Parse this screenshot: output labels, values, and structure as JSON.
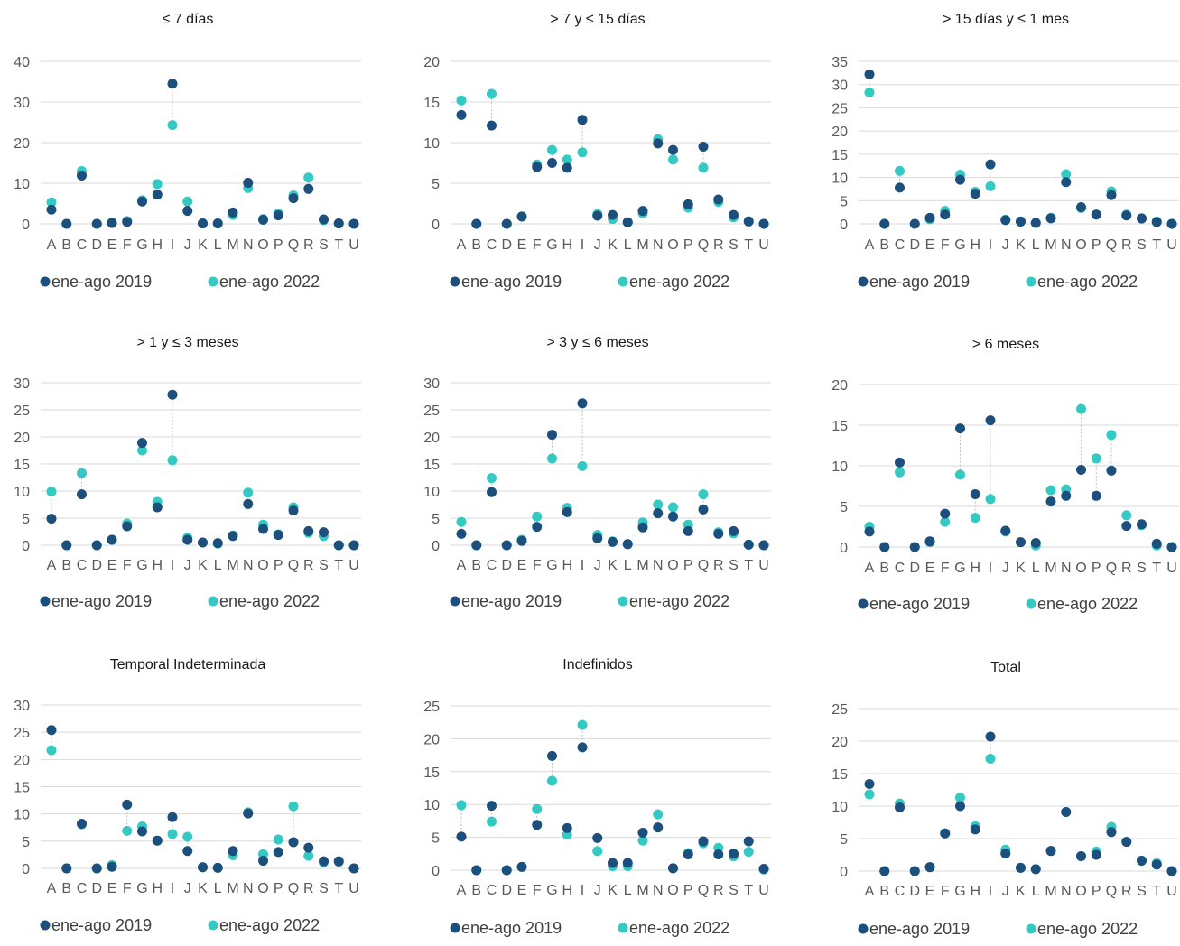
{
  "colors": {
    "s2019": "#1d4f7c",
    "s2022": "#35c9c4",
    "grid": "#d9d9d9",
    "connector": "#bfbfbf"
  },
  "legend": [
    "ene-ago 2019",
    "ene-ago 2022"
  ],
  "chart_data": [
    {
      "type": "scatter",
      "title": "≤ 7 días",
      "categories": [
        "A",
        "B",
        "C",
        "D",
        "E",
        "F",
        "G",
        "H",
        "I",
        "J",
        "K",
        "L",
        "M",
        "N",
        "O",
        "P",
        "Q",
        "R",
        "S",
        "T",
        "U"
      ],
      "ylim": [
        0,
        40
      ],
      "yticks": [
        0,
        10,
        20,
        30,
        40
      ],
      "series": [
        {
          "name": "ene-ago 2019",
          "values": [
            3.5,
            0,
            11.9,
            0,
            0.2,
            0.5,
            5.5,
            7.2,
            34.5,
            3.2,
            0.1,
            0.1,
            2.8,
            10.1,
            1.0,
            2.1,
            6.3,
            8.6,
            1.1,
            0.1,
            0
          ]
        },
        {
          "name": "ene-ago 2022",
          "values": [
            5.3,
            0,
            13.0,
            0,
            0.3,
            0.7,
            5.8,
            9.8,
            24.3,
            5.5,
            0.1,
            0.1,
            2.2,
            8.8,
            1.2,
            2.5,
            7.0,
            11.4,
            0.9,
            0.1,
            0
          ]
        }
      ]
    },
    {
      "type": "scatter",
      "title": "> 7 y ≤ 15 días",
      "categories": [
        "A",
        "B",
        "C",
        "D",
        "E",
        "F",
        "G",
        "H",
        "I",
        "J",
        "K",
        "L",
        "M",
        "N",
        "O",
        "P",
        "Q",
        "R",
        "S",
        "T",
        "U"
      ],
      "ylim": [
        0,
        20
      ],
      "yticks": [
        0,
        5,
        10,
        15,
        20
      ],
      "series": [
        {
          "name": "ene-ago 2019",
          "values": [
            13.4,
            0,
            12.1,
            0,
            0.9,
            7.0,
            7.5,
            6.9,
            12.8,
            1.0,
            1.1,
            0.2,
            1.6,
            9.9,
            9.1,
            2.4,
            9.5,
            3.0,
            1.1,
            0.3,
            0
          ]
        },
        {
          "name": "ene-ago 2022",
          "values": [
            15.2,
            0,
            16.0,
            0,
            0.9,
            7.3,
            9.1,
            7.9,
            8.8,
            1.2,
            0.6,
            0.2,
            1.3,
            10.4,
            7.9,
            2.0,
            6.9,
            2.7,
            0.8,
            0.3,
            0
          ]
        }
      ]
    },
    {
      "type": "scatter",
      "title": "> 15 días y ≤ 1 mes",
      "categories": [
        "A",
        "B",
        "C",
        "D",
        "E",
        "F",
        "G",
        "H",
        "I",
        "J",
        "K",
        "L",
        "M",
        "N",
        "O",
        "P",
        "Q",
        "R",
        "S",
        "T",
        "U"
      ],
      "ylim": [
        0,
        35
      ],
      "yticks": [
        0,
        5,
        10,
        15,
        20,
        25,
        30,
        35
      ],
      "series": [
        {
          "name": "ene-ago 2019",
          "values": [
            32.2,
            0,
            7.8,
            0,
            1.3,
            2.0,
            9.5,
            6.5,
            12.8,
            0.8,
            0.5,
            0.2,
            1.2,
            9.0,
            3.6,
            2.0,
            6.2,
            1.8,
            1.2,
            0.4,
            0
          ]
        },
        {
          "name": "ene-ago 2022",
          "values": [
            28.3,
            0,
            11.4,
            0,
            1.0,
            2.8,
            10.6,
            6.9,
            8.1,
            0.9,
            0.5,
            0.2,
            1.3,
            10.7,
            3.4,
            2.0,
            7.0,
            2.0,
            1.1,
            0.5,
            0
          ]
        }
      ]
    },
    {
      "type": "scatter",
      "title": "> 1 y ≤ 3 meses",
      "categories": [
        "A",
        "B",
        "C",
        "D",
        "E",
        "F",
        "G",
        "H",
        "I",
        "J",
        "K",
        "L",
        "M",
        "N",
        "O",
        "P",
        "Q",
        "R",
        "S",
        "T",
        "U"
      ],
      "ylim": [
        0,
        30
      ],
      "yticks": [
        0,
        5,
        10,
        15,
        20,
        25,
        30
      ],
      "series": [
        {
          "name": "ene-ago 2019",
          "values": [
            4.9,
            0,
            9.4,
            0,
            1.0,
            3.5,
            18.9,
            7.0,
            27.8,
            1.0,
            0.5,
            0.4,
            1.7,
            7.6,
            3.0,
            1.9,
            6.4,
            2.6,
            2.4,
            0,
            0
          ]
        },
        {
          "name": "ene-ago 2022",
          "values": [
            9.9,
            0,
            13.3,
            0,
            1.0,
            4.0,
            17.5,
            8.0,
            15.7,
            1.4,
            0.5,
            0.3,
            1.8,
            9.7,
            3.8,
            2.0,
            7.0,
            2.3,
            1.7,
            0,
            0
          ]
        }
      ]
    },
    {
      "type": "scatter",
      "title": "> 3 y ≤ 6 meses",
      "categories": [
        "A",
        "B",
        "C",
        "D",
        "E",
        "F",
        "G",
        "H",
        "I",
        "J",
        "K",
        "L",
        "M",
        "N",
        "O",
        "P",
        "Q",
        "R",
        "S",
        "T",
        "U"
      ],
      "ylim": [
        0,
        30
      ],
      "yticks": [
        0,
        5,
        10,
        15,
        20,
        25,
        30
      ],
      "series": [
        {
          "name": "ene-ago 2019",
          "values": [
            2.1,
            0,
            9.8,
            0,
            0.8,
            3.4,
            20.4,
            6.1,
            26.2,
            1.3,
            0.6,
            0.2,
            3.3,
            5.9,
            5.3,
            2.6,
            6.6,
            2.1,
            2.6,
            0.1,
            0
          ]
        },
        {
          "name": "ene-ago 2022",
          "values": [
            4.3,
            0,
            12.4,
            0,
            1.0,
            5.3,
            16.0,
            6.9,
            14.6,
            1.9,
            0.7,
            0.2,
            4.2,
            7.5,
            7.0,
            3.8,
            9.4,
            2.4,
            2.2,
            0.1,
            0
          ]
        }
      ]
    },
    {
      "type": "scatter",
      "title": "> 6 meses",
      "categories": [
        "A",
        "B",
        "C",
        "D",
        "E",
        "F",
        "G",
        "H",
        "I",
        "J",
        "K",
        "L",
        "M",
        "N",
        "O",
        "P",
        "Q",
        "R",
        "S",
        "T",
        "U"
      ],
      "ylim": [
        0,
        20
      ],
      "yticks": [
        0,
        5,
        10,
        15,
        20
      ],
      "series": [
        {
          "name": "ene-ago 2019",
          "values": [
            1.9,
            0,
            10.4,
            0,
            0.7,
            4.1,
            14.6,
            6.5,
            15.6,
            2.0,
            0.6,
            0.5,
            5.6,
            6.3,
            9.5,
            6.3,
            9.4,
            2.6,
            2.8,
            0.4,
            0
          ]
        },
        {
          "name": "ene-ago 2022",
          "values": [
            2.5,
            0,
            9.2,
            0,
            0.6,
            3.1,
            8.9,
            3.6,
            5.9,
            1.9,
            0.6,
            0.2,
            7.0,
            7.1,
            17.0,
            10.9,
            13.8,
            3.9,
            2.7,
            0.2,
            0
          ]
        }
      ]
    },
    {
      "type": "scatter",
      "title": "Temporal Indeterminada",
      "categories": [
        "A",
        "B",
        "C",
        "D",
        "E",
        "F",
        "G",
        "H",
        "I",
        "J",
        "K",
        "L",
        "M",
        "N",
        "O",
        "P",
        "Q",
        "R",
        "S",
        "T",
        "U"
      ],
      "ylim": [
        0,
        30
      ],
      "yticks": [
        0,
        5,
        10,
        15,
        20,
        25,
        30
      ],
      "series": [
        {
          "name": "ene-ago 2019",
          "values": [
            25.4,
            0,
            8.2,
            0,
            0.3,
            11.7,
            6.8,
            5.1,
            9.4,
            3.2,
            0.2,
            0.1,
            3.2,
            10.1,
            1.4,
            3.0,
            4.8,
            3.8,
            1.3,
            1.3,
            0
          ]
        },
        {
          "name": "ene-ago 2022",
          "values": [
            21.7,
            0,
            8.1,
            0,
            0.6,
            6.9,
            7.7,
            5.1,
            6.3,
            5.8,
            0.2,
            0.1,
            2.4,
            10.3,
            2.6,
            5.3,
            11.4,
            2.3,
            1.1,
            1.2,
            0
          ]
        }
      ]
    },
    {
      "type": "scatter",
      "title": "Indefinidos",
      "categories": [
        "A",
        "B",
        "C",
        "D",
        "E",
        "F",
        "G",
        "H",
        "I",
        "J",
        "K",
        "L",
        "M",
        "N",
        "O",
        "P",
        "Q",
        "R",
        "S",
        "T",
        "U"
      ],
      "ylim": [
        0,
        25
      ],
      "yticks": [
        0,
        5,
        10,
        15,
        20,
        25
      ],
      "series": [
        {
          "name": "ene-ago 2019",
          "values": [
            5.1,
            0,
            9.8,
            0,
            0.5,
            6.9,
            17.4,
            6.4,
            18.7,
            4.9,
            1.1,
            1.1,
            5.7,
            6.5,
            0.3,
            2.4,
            4.4,
            2.4,
            2.5,
            4.4,
            0.2
          ]
        },
        {
          "name": "ene-ago 2022",
          "values": [
            9.9,
            0,
            7.4,
            0,
            0.5,
            9.3,
            13.6,
            5.4,
            22.1,
            2.9,
            0.6,
            0.6,
            4.5,
            8.5,
            0.3,
            2.6,
            4.1,
            3.4,
            2.1,
            2.8,
            0.1
          ]
        }
      ]
    },
    {
      "type": "scatter",
      "title": "Total",
      "categories": [
        "A",
        "B",
        "C",
        "D",
        "E",
        "F",
        "G",
        "H",
        "I",
        "J",
        "K",
        "L",
        "M",
        "N",
        "O",
        "P",
        "Q",
        "R",
        "S",
        "T",
        "U"
      ],
      "ylim": [
        0,
        25
      ],
      "yticks": [
        0,
        5,
        10,
        15,
        20,
        25
      ],
      "series": [
        {
          "name": "ene-ago 2019",
          "values": [
            13.4,
            0,
            9.8,
            0,
            0.6,
            5.8,
            10.0,
            6.4,
            20.7,
            2.7,
            0.5,
            0.3,
            3.1,
            9.1,
            2.3,
            2.5,
            6.0,
            4.5,
            1.6,
            1.0,
            0
          ]
        },
        {
          "name": "ene-ago 2022",
          "values": [
            11.8,
            0,
            10.4,
            0,
            0.6,
            5.8,
            11.3,
            6.9,
            17.3,
            3.3,
            0.5,
            0.3,
            3.1,
            9.1,
            2.3,
            3.0,
            6.8,
            4.5,
            1.6,
            1.2,
            0
          ]
        }
      ]
    }
  ]
}
